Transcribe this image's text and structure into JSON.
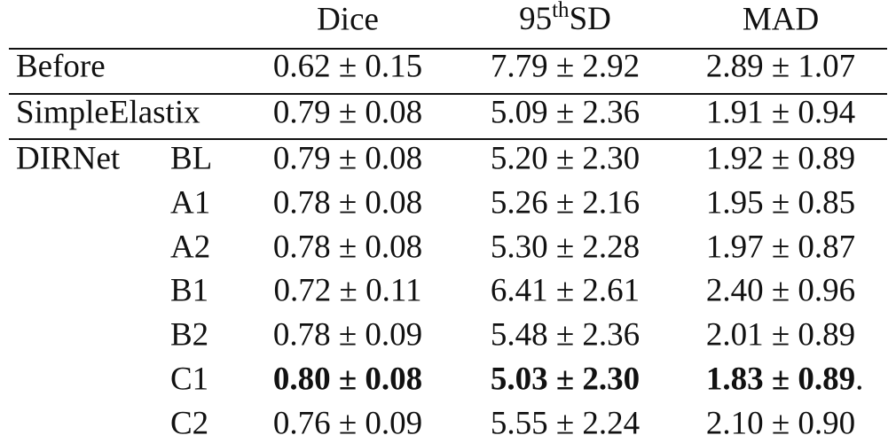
{
  "table": {
    "header": {
      "dice": "Dice",
      "sd": {
        "base": "95",
        "sup": "th",
        "rest": "SD"
      },
      "mad": "MAD"
    },
    "rows": [
      {
        "label": "Before",
        "cells": [
          "0.62 ± 0.15",
          "7.79 ± 2.92",
          "2.89 ± 1.07"
        ]
      },
      {
        "label": "SimpleElastix",
        "cells": [
          "0.79 ± 0.08",
          "5.09 ± 2.36",
          "1.91 ± 0.94"
        ]
      },
      {
        "label": "DIRNet",
        "variant": "BL",
        "cells": [
          "0.79 ± 0.08",
          "5.20 ± 2.30",
          "1.92 ± 0.89"
        ]
      },
      {
        "variant": "A1",
        "cells": [
          "0.78 ± 0.08",
          "5.26 ± 2.16",
          "1.95 ± 0.85"
        ]
      },
      {
        "variant": "A2",
        "cells": [
          "0.78 ± 0.08",
          "5.30 ± 2.28",
          "1.97 ± 0.87"
        ]
      },
      {
        "variant": "B1",
        "cells": [
          "0.72 ± 0.11",
          "6.41 ± 2.61",
          "2.40 ± 0.96"
        ]
      },
      {
        "variant": "B2",
        "cells": [
          "0.78 ± 0.09",
          "5.48 ± 2.36",
          "2.01 ± 0.89"
        ]
      },
      {
        "variant": "C1",
        "cells": [
          "0.80 ± 0.08",
          "5.03 ± 2.30",
          "1.83 ± 0.89"
        ],
        "bold": true,
        "suffix": "."
      },
      {
        "variant": "C2",
        "cells": [
          "0.76 ± 0.09",
          "5.55 ± 2.24",
          "2.10 ± 0.90"
        ]
      }
    ]
  }
}
